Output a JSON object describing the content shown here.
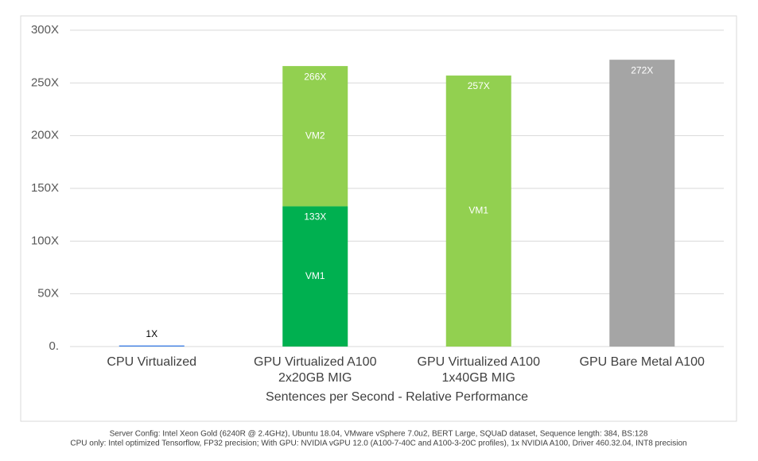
{
  "chart_data": {
    "type": "stacked_bar",
    "categories": [
      "CPU Virtualized",
      "GPU Virtualized A100\n2x20GB MIG",
      "GPU Virtualized A100\n1x40GB MIG",
      "GPU Bare Metal A100"
    ],
    "series": [
      {
        "name": "VM1",
        "colors": [
          "#3c7ee6",
          "#00b050",
          "#92d050",
          "#a5a5a5"
        ],
        "values": [
          1,
          133,
          257,
          272
        ],
        "value_labels": [
          "1X",
          "133X",
          "257X",
          "272X"
        ],
        "show_name": [
          false,
          true,
          true,
          false
        ]
      },
      {
        "name": "VM2",
        "color": "#92d050",
        "values": [
          null,
          133,
          null,
          null
        ],
        "show_name": [
          false,
          true,
          false,
          false
        ]
      }
    ],
    "totals": [
      null,
      266,
      null,
      null
    ],
    "total_labels": [
      null,
      "266X",
      null,
      null
    ],
    "x_label": "Sentences per Second - Relative Performance",
    "ylim": [
      0,
      300
    ],
    "yticks": [
      {
        "value": 0,
        "label": "0."
      },
      {
        "value": 50,
        "label": "50X"
      },
      {
        "value": 100,
        "label": "100X"
      },
      {
        "value": 150,
        "label": "150X"
      },
      {
        "value": 200,
        "label": "200X"
      },
      {
        "value": 250,
        "label": "250X"
      },
      {
        "value": 300,
        "label": "300X"
      }
    ],
    "grid": true,
    "footnotes": [
      "Server Config: Intel Xeon Gold (6240R @ 2.4GHz), Ubuntu 18.04, VMware vSphere 7.0u2, BERT Large, SQUaD dataset, Sequence length: 384, BS:128",
      "CPU only: Intel optimized Tensorflow, FP32 precision; With GPU: NVIDIA vGPU 12.0 (A100-7-40C and A100-3-20C profiles), 1x NVIDIA A100, Driver 460.32.04, INT8 precision"
    ]
  }
}
